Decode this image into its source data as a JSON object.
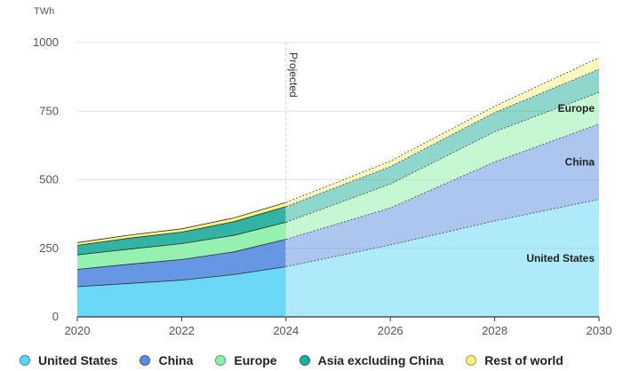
{
  "chart_data": {
    "type": "area",
    "stacked": true,
    "unit_label": "TWh",
    "x": [
      2020,
      2021,
      2022,
      2023,
      2024,
      2026,
      2028,
      2030
    ],
    "xticks": [
      "2020",
      "2022",
      "2024",
      "2026",
      "2028",
      "2030"
    ],
    "yticks": [
      "0",
      "250",
      "500",
      "750",
      "1000"
    ],
    "ylim": [
      0,
      1000
    ],
    "xlim": [
      2020,
      2030
    ],
    "projection_start": 2024,
    "projection_label": "Projected",
    "grid": true,
    "legend_position": "bottom",
    "series": [
      {
        "name": "United States",
        "color": "#5dd5f5",
        "values": [
          110,
          122,
          134,
          154,
          183,
          262,
          350,
          428
        ]
      },
      {
        "name": "China",
        "color": "#5a8de0",
        "values": [
          63,
          70,
          75,
          83,
          100,
          135,
          215,
          275
        ]
      },
      {
        "name": "Europe",
        "color": "#8cf0a8",
        "values": [
          53,
          55,
          58,
          60,
          62,
          87,
          110,
          115
        ]
      },
      {
        "name": "Asia excluding China",
        "color": "#1fae9b",
        "values": [
          35,
          40,
          42,
          50,
          57,
          64,
          70,
          85
        ]
      },
      {
        "name": "Rest of world",
        "color": "#fff27a",
        "values": [
          10,
          11,
          12,
          14,
          15,
          20,
          23,
          42
        ]
      }
    ],
    "inline_labels": [
      {
        "series": "United States",
        "text": "United States"
      },
      {
        "series": "China",
        "text": "China"
      },
      {
        "series": "Europe",
        "text": "Europe"
      }
    ]
  }
}
